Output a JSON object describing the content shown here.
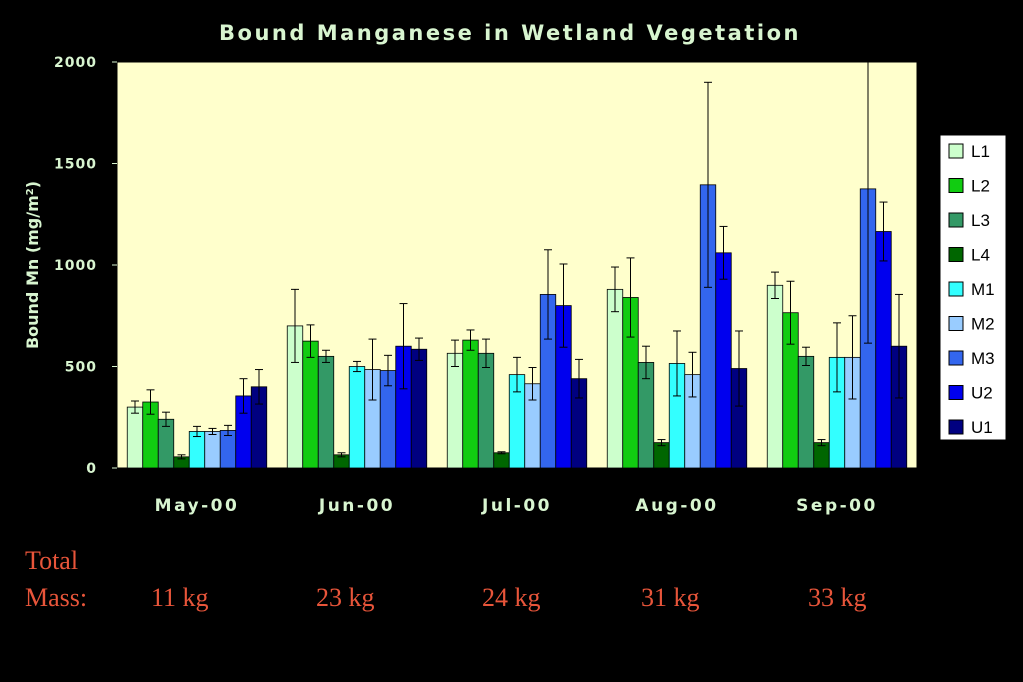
{
  "chart_data": {
    "type": "bar",
    "title": "Bound Manganese in Wetland Vegetation",
    "ylabel": "Bound Mn (mg/m²)",
    "ylabel_main": "Bound Mn (mg/m",
    "ylabel_sup": "2",
    "ylabel_end": ")",
    "xlabel": "",
    "ylim": [
      0,
      2000
    ],
    "yticks": [
      "0",
      "500",
      "1000",
      "1500",
      "2000"
    ],
    "categories": [
      "May-00",
      "Jun-00",
      "Jul-00",
      "Aug-00",
      "Sep-00"
    ],
    "grid": false,
    "legend_position": "right",
    "plot_background": "#ffffcc",
    "series": [
      {
        "name": "L1",
        "color": "#ccffcc",
        "values": [
          300,
          700,
          565,
          880,
          900
        ],
        "errors": [
          30,
          180,
          65,
          110,
          65
        ]
      },
      {
        "name": "L2",
        "color": "#11cc11",
        "values": [
          325,
          625,
          630,
          840,
          765
        ],
        "errors": [
          60,
          80,
          50,
          195,
          155
        ]
      },
      {
        "name": "L3",
        "color": "#339966",
        "values": [
          240,
          550,
          565,
          520,
          550
        ],
        "errors": [
          35,
          30,
          70,
          80,
          45
        ]
      },
      {
        "name": "L4",
        "color": "#006600",
        "values": [
          55,
          65,
          75,
          125,
          125
        ],
        "errors": [
          10,
          10,
          5,
          15,
          15
        ]
      },
      {
        "name": "M1",
        "color": "#33ffff",
        "values": [
          180,
          500,
          460,
          515,
          545
        ],
        "errors": [
          25,
          25,
          85,
          160,
          170
        ]
      },
      {
        "name": "M2",
        "color": "#99ccff",
        "values": [
          180,
          485,
          415,
          460,
          545
        ],
        "errors": [
          15,
          150,
          80,
          110,
          205
        ]
      },
      {
        "name": "M3",
        "color": "#3366ee",
        "values": [
          185,
          480,
          855,
          1395,
          1375
        ],
        "errors": [
          25,
          75,
          220,
          505,
          760
        ]
      },
      {
        "name": "U2",
        "color": "#0000ee",
        "values": [
          355,
          600,
          800,
          1060,
          1165
        ],
        "errors": [
          85,
          210,
          205,
          130,
          145
        ]
      },
      {
        "name": "U1",
        "color": "#000080",
        "values": [
          400,
          585,
          440,
          490,
          600
        ],
        "errors": [
          85,
          55,
          95,
          185,
          255
        ]
      }
    ]
  },
  "footer": {
    "total_label": "Total",
    "mass_label": "Mass:",
    "masses": [
      "11 kg",
      "23 kg",
      "24 kg",
      "31 kg",
      "33 kg"
    ]
  }
}
